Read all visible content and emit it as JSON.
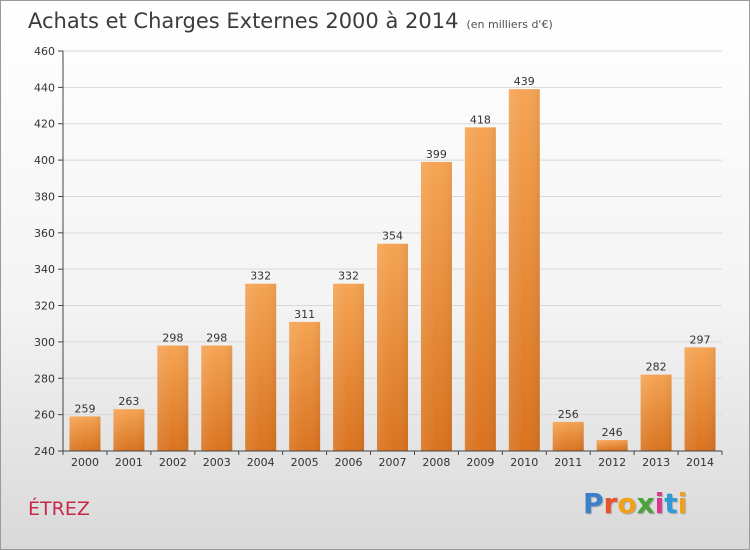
{
  "header": {
    "title": "Achats et Charges Externes 2000 à 2014",
    "subtitle": "(en milliers d'€)"
  },
  "footer": {
    "town": "ÉTREZ",
    "logo_letters": [
      "P",
      "r",
      "o",
      "x",
      "i",
      "t",
      "i"
    ]
  },
  "colors": {
    "bar_top": "#f5a453",
    "bar_bottom": "#d9731f",
    "axis": "#444444",
    "grid": "#d9d9d9"
  },
  "chart_data": {
    "type": "bar",
    "title": "Achats et Charges Externes 2000 à 2014",
    "subtitle": "(en milliers d'€)",
    "categories": [
      "2000",
      "2001",
      "2002",
      "2003",
      "2004",
      "2005",
      "2006",
      "2007",
      "2008",
      "2009",
      "2010",
      "2011",
      "2012",
      "2013",
      "2014"
    ],
    "values": [
      259,
      263,
      298,
      298,
      332,
      311,
      332,
      354,
      399,
      418,
      439,
      256,
      246,
      282,
      297
    ],
    "ylim": [
      240,
      460
    ],
    "yticks": [
      240,
      260,
      280,
      300,
      320,
      340,
      360,
      380,
      400,
      420,
      440,
      460
    ],
    "grid": true,
    "data_labels": true
  }
}
